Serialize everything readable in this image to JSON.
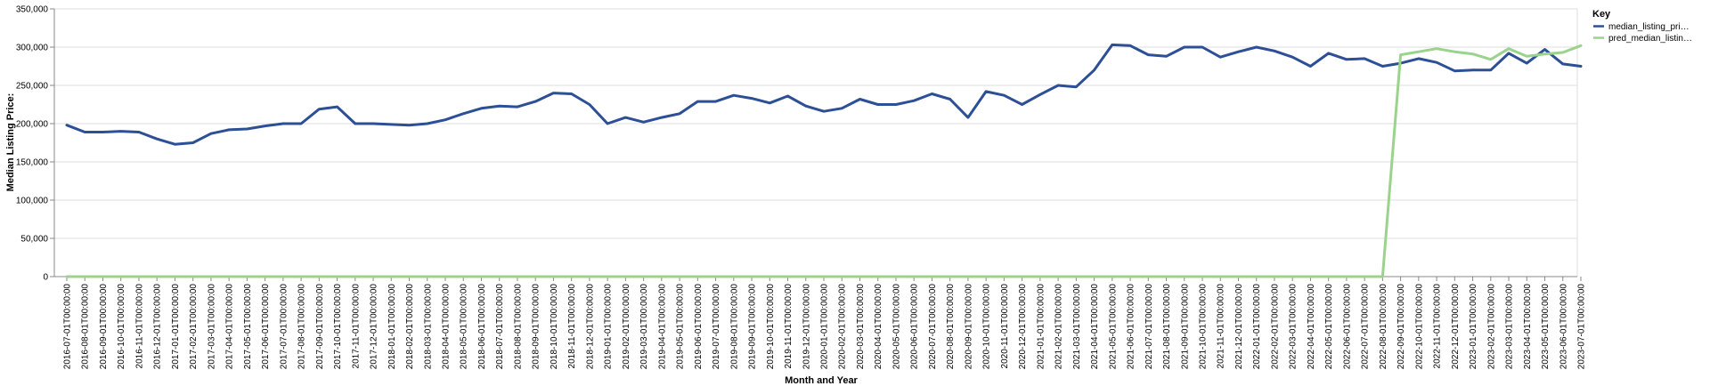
{
  "chart_data": {
    "type": "line",
    "title": "",
    "xlabel": "Month and Year",
    "ylabel": "Median Listing Price:",
    "ylim": [
      0,
      350000
    ],
    "y_ticks": [
      0,
      50000,
      100000,
      150000,
      200000,
      250000,
      300000,
      350000
    ],
    "y_tick_labels": [
      "0",
      "50,000",
      "100,000",
      "150,000",
      "200,000",
      "250,000",
      "300,000",
      "350,000"
    ],
    "grid": true,
    "legend": {
      "title": "Key",
      "placement": "right",
      "entries": [
        {
          "label": "median_listing_pri…",
          "color": "#2c4f95"
        },
        {
          "label": "pred_median_listin…",
          "color": "#9bd38c"
        }
      ]
    },
    "x": [
      "2016-07-01T00:00:00",
      "2016-08-01T00:00:00",
      "2016-09-01T00:00:00",
      "2016-10-01T00:00:00",
      "2016-11-01T00:00:00",
      "2016-12-01T00:00:00",
      "2017-01-01T00:00:00",
      "2017-02-01T00:00:00",
      "2017-03-01T00:00:00",
      "2017-04-01T00:00:00",
      "2017-05-01T00:00:00",
      "2017-06-01T00:00:00",
      "2017-07-01T00:00:00",
      "2017-08-01T00:00:00",
      "2017-09-01T00:00:00",
      "2017-10-01T00:00:00",
      "2017-11-01T00:00:00",
      "2017-12-01T00:00:00",
      "2018-01-01T00:00:00",
      "2018-02-01T00:00:00",
      "2018-03-01T00:00:00",
      "2018-04-01T00:00:00",
      "2018-05-01T00:00:00",
      "2018-06-01T00:00:00",
      "2018-07-01T00:00:00",
      "2018-08-01T00:00:00",
      "2018-09-01T00:00:00",
      "2018-10-01T00:00:00",
      "2018-11-01T00:00:00",
      "2018-12-01T00:00:00",
      "2019-01-01T00:00:00",
      "2019-02-01T00:00:00",
      "2019-03-01T00:00:00",
      "2019-04-01T00:00:00",
      "2019-05-01T00:00:00",
      "2019-06-01T00:00:00",
      "2019-07-01T00:00:00",
      "2019-08-01T00:00:00",
      "2019-09-01T00:00:00",
      "2019-10-01T00:00:00",
      "2019-11-01T00:00:00",
      "2019-12-01T00:00:00",
      "2020-01-01T00:00:00",
      "2020-02-01T00:00:00",
      "2020-03-01T00:00:00",
      "2020-04-01T00:00:00",
      "2020-05-01T00:00:00",
      "2020-06-01T00:00:00",
      "2020-07-01T00:00:00",
      "2020-08-01T00:00:00",
      "2020-09-01T00:00:00",
      "2020-10-01T00:00:00",
      "2020-11-01T00:00:00",
      "2020-12-01T00:00:00",
      "2021-01-01T00:00:00",
      "2021-02-01T00:00:00",
      "2021-03-01T00:00:00",
      "2021-04-01T00:00:00",
      "2021-05-01T00:00:00",
      "2021-06-01T00:00:00",
      "2021-07-01T00:00:00",
      "2021-08-01T00:00:00",
      "2021-09-01T00:00:00",
      "2021-10-01T00:00:00",
      "2021-11-01T00:00:00",
      "2021-12-01T00:00:00",
      "2022-01-01T00:00:00",
      "2022-02-01T00:00:00",
      "2022-03-01T00:00:00",
      "2022-04-01T00:00:00",
      "2022-05-01T00:00:00",
      "2022-06-01T00:00:00",
      "2022-07-01T00:00:00",
      "2022-08-01T00:00:00",
      "2022-09-01T00:00:00",
      "2022-10-01T00:00:00",
      "2022-11-01T00:00:00",
      "2022-12-01T00:00:00",
      "2023-01-01T00:00:00",
      "2023-02-01T00:00:00",
      "2023-03-01T00:00:00",
      "2023-04-01T00:00:00",
      "2023-05-01T00:00:00",
      "2023-06-01T00:00:00",
      "2023-07-01T00:00:00"
    ],
    "series": [
      {
        "name": "median_listing_pri…",
        "color": "#2c4f95",
        "values": [
          198000,
          189000,
          189000,
          190000,
          189000,
          180000,
          173000,
          175000,
          187000,
          192000,
          193000,
          197000,
          200000,
          200000,
          219000,
          222000,
          200000,
          200000,
          199000,
          198000,
          200000,
          205000,
          213000,
          220000,
          223000,
          222000,
          229000,
          240000,
          239000,
          225000,
          200000,
          208000,
          202000,
          208000,
          213000,
          229000,
          229000,
          237000,
          233000,
          227000,
          236000,
          223000,
          216000,
          220000,
          232000,
          225000,
          225000,
          230000,
          239000,
          232000,
          208000,
          242000,
          237000,
          225000,
          238000,
          250000,
          248000,
          270000,
          303000,
          302000,
          290000,
          288000,
          300000,
          300000,
          287000,
          294000,
          300000,
          295000,
          287000,
          275000,
          292000,
          284000,
          285000,
          275000,
          279000,
          285000,
          280000,
          269000,
          270000,
          270000,
          292000,
          279000,
          297000,
          278000,
          275000
        ]
      },
      {
        "name": "pred_median_listin…",
        "color": "#9bd38c",
        "values": [
          0,
          0,
          0,
          0,
          0,
          0,
          0,
          0,
          0,
          0,
          0,
          0,
          0,
          0,
          0,
          0,
          0,
          0,
          0,
          0,
          0,
          0,
          0,
          0,
          0,
          0,
          0,
          0,
          0,
          0,
          0,
          0,
          0,
          0,
          0,
          0,
          0,
          0,
          0,
          0,
          0,
          0,
          0,
          0,
          0,
          0,
          0,
          0,
          0,
          0,
          0,
          0,
          0,
          0,
          0,
          0,
          0,
          0,
          0,
          0,
          0,
          0,
          0,
          0,
          0,
          0,
          0,
          0,
          0,
          0,
          0,
          0,
          0,
          0,
          290000,
          294000,
          298000,
          294000,
          291000,
          284000,
          298000,
          288000,
          291000,
          293000,
          302000
        ]
      }
    ]
  }
}
